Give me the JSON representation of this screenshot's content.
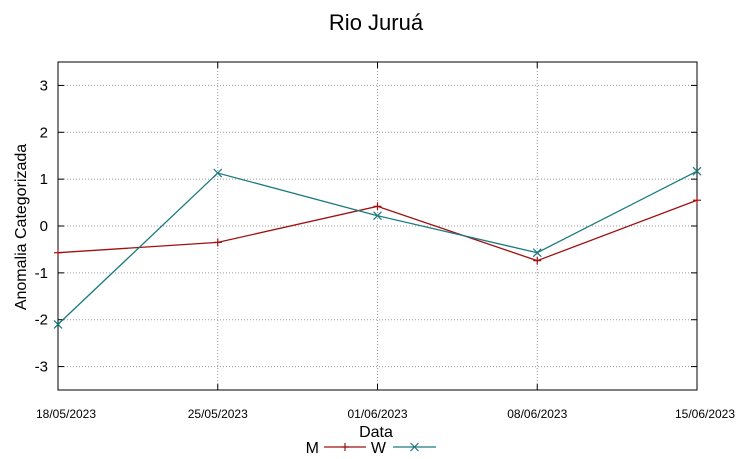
{
  "chart_data": {
    "type": "line",
    "title": "Rio Juruá",
    "xlabel": "Data",
    "ylabel": "Anomalia Categorizada",
    "categories": [
      "18/05/2023",
      "25/05/2023",
      "01/06/2023",
      "08/06/2023",
      "15/06/2023"
    ],
    "ylim": [
      -3.5,
      3.5
    ],
    "yticks": [
      3,
      2,
      1,
      0,
      -1,
      -2,
      -3
    ],
    "grid": true,
    "legend_position": "bottom",
    "series": [
      {
        "name": "M",
        "color": "#a01010",
        "marker": "plus",
        "values": [
          -0.57,
          -0.35,
          0.42,
          -0.74,
          0.55
        ]
      },
      {
        "name": "W",
        "color": "#1a7a80",
        "marker": "cross",
        "values": [
          -2.1,
          1.13,
          0.22,
          -0.57,
          1.17
        ]
      }
    ]
  }
}
